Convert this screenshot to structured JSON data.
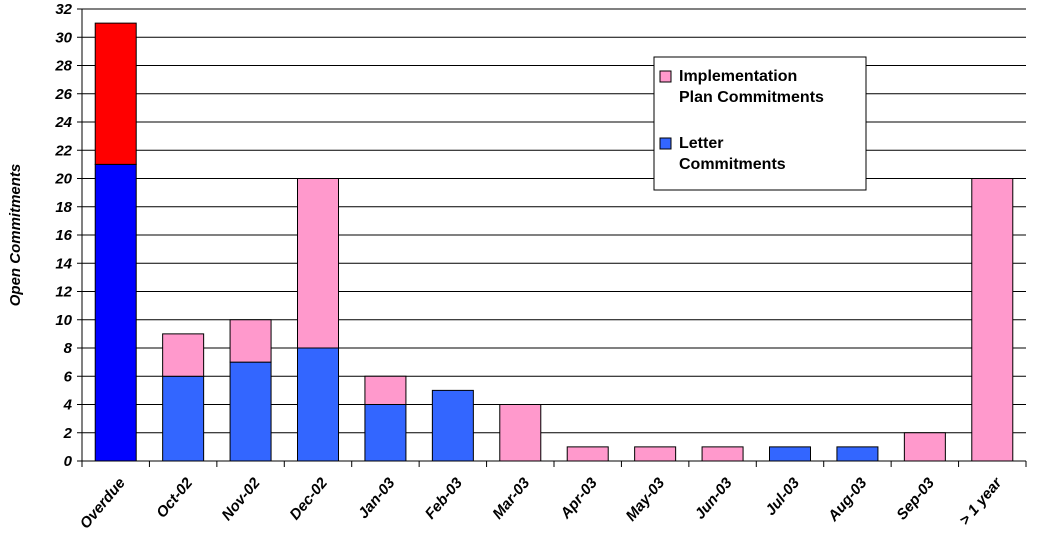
{
  "chart_data": {
    "type": "bar",
    "stacked": true,
    "title": "",
    "xlabel": "",
    "ylabel": "Open Commitments",
    "ylim": [
      0,
      32
    ],
    "ytick_step": 2,
    "grid": true,
    "legend_position": "top-right",
    "categories": [
      "Overdue",
      "Oct-02",
      "Nov-02",
      "Dec-02",
      "Jan-03",
      "Feb-03",
      "Mar-03",
      "Apr-03",
      "May-03",
      "Jun-03",
      "Jul-03",
      "Aug-03",
      "Sep-03",
      "> 1 year"
    ],
    "series": [
      {
        "name": "Letter Commitments",
        "color": "#3366ff",
        "values": [
          21,
          6,
          7,
          8,
          4,
          5,
          0,
          0,
          0,
          0,
          1,
          1,
          0,
          0
        ]
      },
      {
        "name": "Implementation Plan Commitments",
        "color": "#ff99cc",
        "values": [
          10,
          3,
          3,
          12,
          2,
          0,
          4,
          1,
          1,
          1,
          0,
          0,
          2,
          20
        ]
      }
    ],
    "overdue_colors": {
      "letter": "#0000ff",
      "implementation": "#ff0000"
    },
    "legend": [
      {
        "label_line1": "Implementation",
        "label_line2": "Plan Commitments",
        "color": "#ff99cc"
      },
      {
        "label_line1": "Letter",
        "label_line2": "Commitments",
        "color": "#3366ff"
      }
    ]
  }
}
